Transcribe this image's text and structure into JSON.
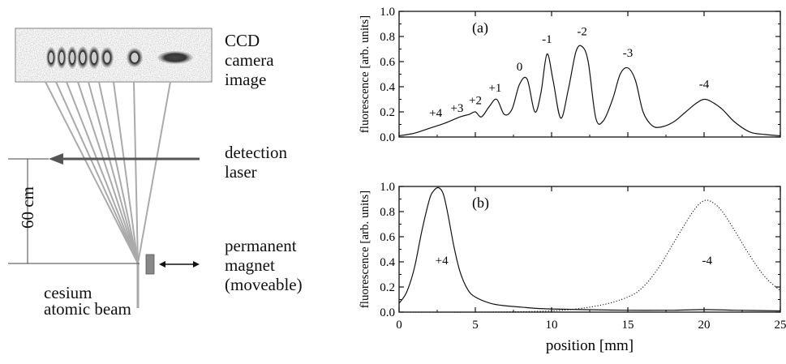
{
  "schematic": {
    "ccd_label": [
      "CCD",
      "camera",
      "image"
    ],
    "detection_label": [
      "detection",
      "laser"
    ],
    "distance_label": "60 cm",
    "magnet_label": [
      "permanent",
      "magnet",
      "(moveable)"
    ],
    "source_label": [
      "cesium",
      "atomic beam"
    ]
  },
  "chart_data": [
    {
      "type": "line",
      "panel_label": "(a)",
      "ylabel": "fluorescence [arb. units]",
      "xlabel": "",
      "xlim": [
        0,
        25
      ],
      "ylim": [
        0,
        1.0
      ],
      "yticks": [
        "0.0",
        "0.2",
        "0.4",
        "0.6",
        "0.8",
        "1.0"
      ],
      "series": [
        {
          "x": [
            0,
            1,
            2,
            3,
            4,
            4.6,
            5.0,
            5.4,
            5.9,
            6.4,
            6.9,
            7.4,
            7.9,
            8.4,
            8.9,
            9.3,
            9.7,
            10.1,
            10.6,
            11.1,
            11.6,
            12.0,
            12.4,
            12.9,
            13.4,
            14.0,
            14.5,
            15.0,
            15.5,
            16.0,
            16.6,
            17.2,
            18.0,
            18.8,
            19.5,
            20.0,
            20.5,
            21.2,
            22,
            23,
            24,
            25
          ],
          "y": [
            0.01,
            0.03,
            0.07,
            0.11,
            0.16,
            0.18,
            0.2,
            0.16,
            0.24,
            0.3,
            0.18,
            0.22,
            0.42,
            0.46,
            0.2,
            0.35,
            0.66,
            0.45,
            0.15,
            0.38,
            0.68,
            0.72,
            0.6,
            0.15,
            0.13,
            0.3,
            0.5,
            0.55,
            0.45,
            0.2,
            0.09,
            0.08,
            0.12,
            0.2,
            0.27,
            0.3,
            0.28,
            0.22,
            0.12,
            0.04,
            0.02,
            0.01
          ]
        }
      ],
      "annotations": [
        {
          "text": "+4",
          "x": 2.4,
          "y": 0.16
        },
        {
          "text": "+3",
          "x": 3.8,
          "y": 0.2
        },
        {
          "text": "+2",
          "x": 5.0,
          "y": 0.26
        },
        {
          "text": "+1",
          "x": 6.3,
          "y": 0.36
        },
        {
          "text": "0",
          "x": 7.9,
          "y": 0.53
        },
        {
          "text": "-1",
          "x": 9.7,
          "y": 0.75
        },
        {
          "text": "-2",
          "x": 12.0,
          "y": 0.81
        },
        {
          "text": "-3",
          "x": 15.0,
          "y": 0.64
        },
        {
          "text": "-4",
          "x": 20.0,
          "y": 0.39
        }
      ]
    },
    {
      "type": "line",
      "panel_label": "(b)",
      "ylabel": "fluorescence [arb. units]",
      "xlabel": "position [mm]",
      "xlim": [
        0,
        25
      ],
      "ylim": [
        0,
        1.0
      ],
      "xticks": [
        "0",
        "5",
        "10",
        "15",
        "20",
        "25"
      ],
      "yticks": [
        "0.0",
        "0.2",
        "0.4",
        "0.6",
        "0.8",
        "1.0"
      ],
      "series": [
        {
          "style": "solid",
          "x": [
            0,
            0.5,
            1.0,
            1.5,
            2.0,
            2.3,
            2.6,
            2.9,
            3.2,
            3.6,
            4.0,
            4.5,
            5,
            6,
            7,
            8,
            9,
            10,
            12,
            15,
            18,
            20,
            22,
            25
          ],
          "y": [
            0.07,
            0.16,
            0.35,
            0.65,
            0.9,
            0.97,
            0.99,
            0.94,
            0.78,
            0.52,
            0.32,
            0.18,
            0.12,
            0.07,
            0.05,
            0.04,
            0.03,
            0.025,
            0.02,
            0.015,
            0.015,
            0.02,
            0.015,
            0.01
          ]
        },
        {
          "style": "dotted",
          "x": [
            0,
            5,
            10,
            13,
            15,
            16,
            17,
            18,
            19,
            19.6,
            20.1,
            20.6,
            21.2,
            22,
            23,
            24,
            25
          ],
          "y": [
            0.0,
            0.0,
            0.01,
            0.05,
            0.12,
            0.2,
            0.35,
            0.55,
            0.75,
            0.85,
            0.89,
            0.87,
            0.8,
            0.65,
            0.45,
            0.28,
            0.17
          ]
        }
      ],
      "annotations": [
        {
          "text": "+4",
          "x": 2.8,
          "y": 0.38
        },
        {
          "text": "-4",
          "x": 20.2,
          "y": 0.38
        }
      ]
    }
  ]
}
